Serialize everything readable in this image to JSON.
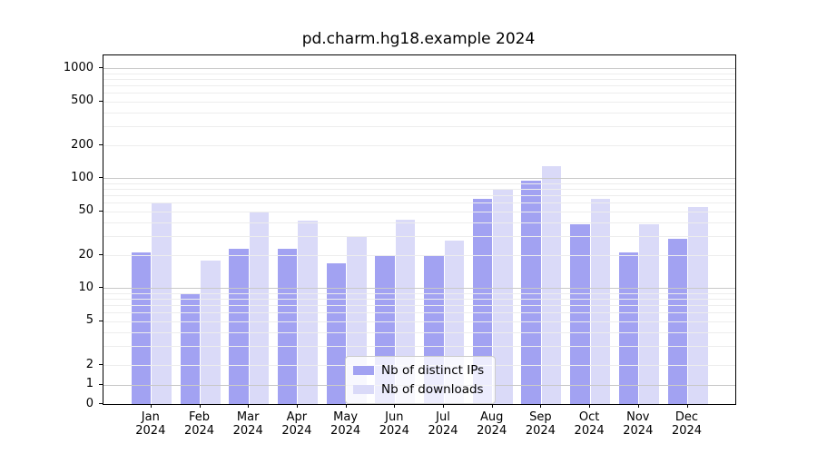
{
  "figure": {
    "title": "pd.charm.hg18.example 2024"
  },
  "chart_data": {
    "type": "bar",
    "title": "pd.charm.hg18.example 2024",
    "xlabel": "",
    "ylabel": "",
    "categories": [
      "Jan",
      "Feb",
      "Mar",
      "Apr",
      "May",
      "Jun",
      "Jul",
      "Aug",
      "Sep",
      "Oct",
      "Nov",
      "Dec"
    ],
    "x_tick_year_line": "2024",
    "series": [
      {
        "name": "Nb of distinct IPs",
        "color": "#a2a2f2",
        "values": [
          21,
          9,
          23,
          23,
          17,
          20,
          20,
          65,
          95,
          38,
          21,
          28
        ]
      },
      {
        "name": "Nb of downloads",
        "color": "#dadaf8",
        "values": [
          60,
          18,
          50,
          41,
          30,
          42,
          27,
          80,
          130,
          65,
          38,
          55
        ]
      }
    ],
    "yscale": "symlog",
    "ylim": [
      0,
      1300
    ],
    "yticks": [
      0,
      1,
      2,
      5,
      10,
      20,
      50,
      100,
      200,
      500,
      1000
    ],
    "grid": {
      "major_ticks": [
        1,
        10,
        100,
        1000
      ],
      "minor_ticks": "2-9 multiples of each decade",
      "major_color": "#c9c9c9",
      "minor_color": "#ededed"
    },
    "legend": {
      "position": "lower center",
      "frame": true
    }
  }
}
